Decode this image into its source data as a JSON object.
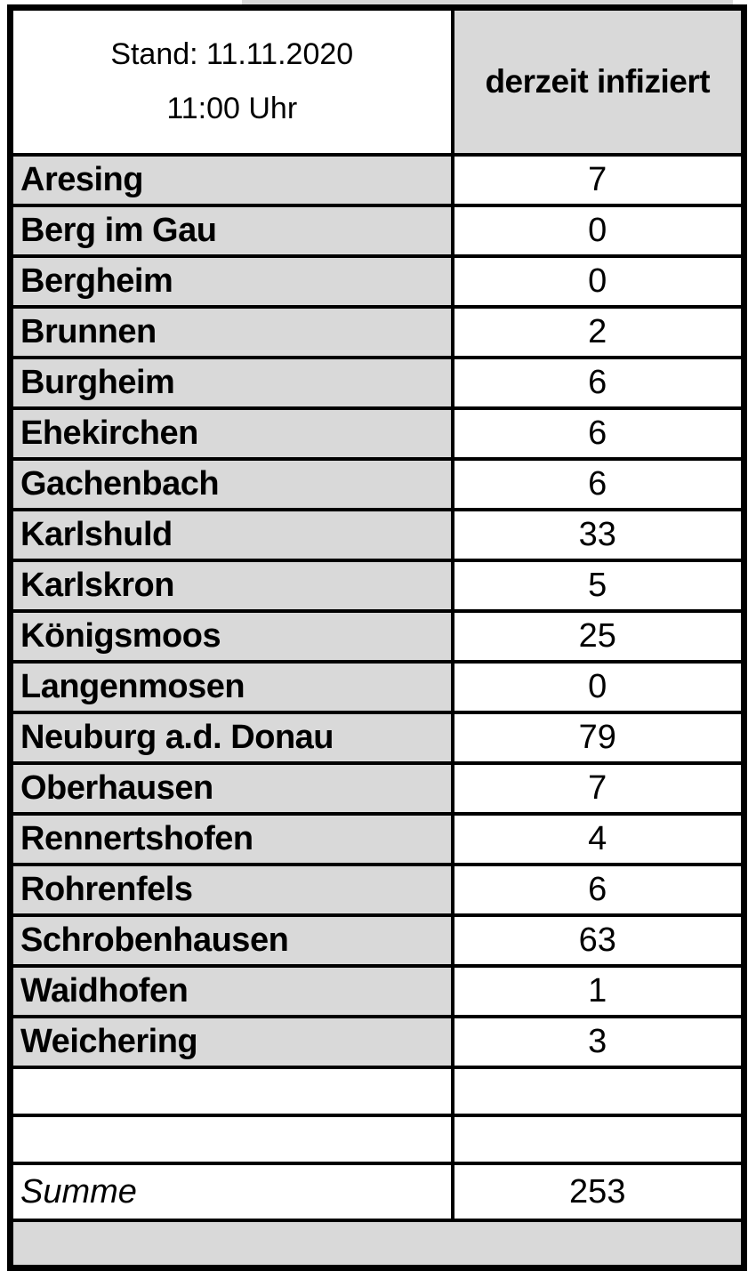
{
  "header": {
    "line1": "Stand: 11.11.2020",
    "line2": "11:00 Uhr",
    "value_label": "derzeit infiziert"
  },
  "rows": [
    {
      "name": "Aresing",
      "value": "7"
    },
    {
      "name": "Berg im Gau",
      "value": "0"
    },
    {
      "name": "Bergheim",
      "value": "0"
    },
    {
      "name": "Brunnen",
      "value": "2"
    },
    {
      "name": "Burgheim",
      "value": "6"
    },
    {
      "name": "Ehekirchen",
      "value": "6"
    },
    {
      "name": "Gachenbach",
      "value": "6"
    },
    {
      "name": "Karlshuld",
      "value": "33"
    },
    {
      "name": "Karlskron",
      "value": "5"
    },
    {
      "name": "Königsmoos",
      "value": "25"
    },
    {
      "name": "Langenmosen",
      "value": "0"
    },
    {
      "name": "Neuburg a.d. Donau",
      "value": "79"
    },
    {
      "name": "Oberhausen",
      "value": "7"
    },
    {
      "name": "Rennertshofen",
      "value": "4"
    },
    {
      "name": "Rohrenfels",
      "value": "6"
    },
    {
      "name": "Schrobenhausen",
      "value": "63"
    },
    {
      "name": "Waidhofen",
      "value": "1"
    },
    {
      "name": "Weichering",
      "value": "3"
    }
  ],
  "empty_row_count": 2,
  "summary": {
    "label": "Summe",
    "value": "253"
  },
  "chart_data": {
    "type": "table",
    "title": "derzeit infiziert",
    "subtitle": "Stand: 11.11.2020 11:00 Uhr",
    "columns": [
      "Stand: 11.11.2020 11:00 Uhr",
      "derzeit infiziert"
    ],
    "categories": [
      "Aresing",
      "Berg im Gau",
      "Bergheim",
      "Brunnen",
      "Burgheim",
      "Ehekirchen",
      "Gachenbach",
      "Karlshuld",
      "Karlskron",
      "Königsmoos",
      "Langenmosen",
      "Neuburg a.d. Donau",
      "Oberhausen",
      "Rennertshofen",
      "Rohrenfels",
      "Schrobenhausen",
      "Waidhofen",
      "Weichering"
    ],
    "values": [
      7,
      0,
      0,
      2,
      6,
      6,
      6,
      33,
      5,
      25,
      0,
      79,
      7,
      4,
      6,
      63,
      1,
      3
    ],
    "total_label": "Summe",
    "total": 253
  },
  "colors": {
    "cell_fill": "#d9d9d9",
    "border": "#000000",
    "text": "#000000",
    "paper": "#ffffff"
  }
}
